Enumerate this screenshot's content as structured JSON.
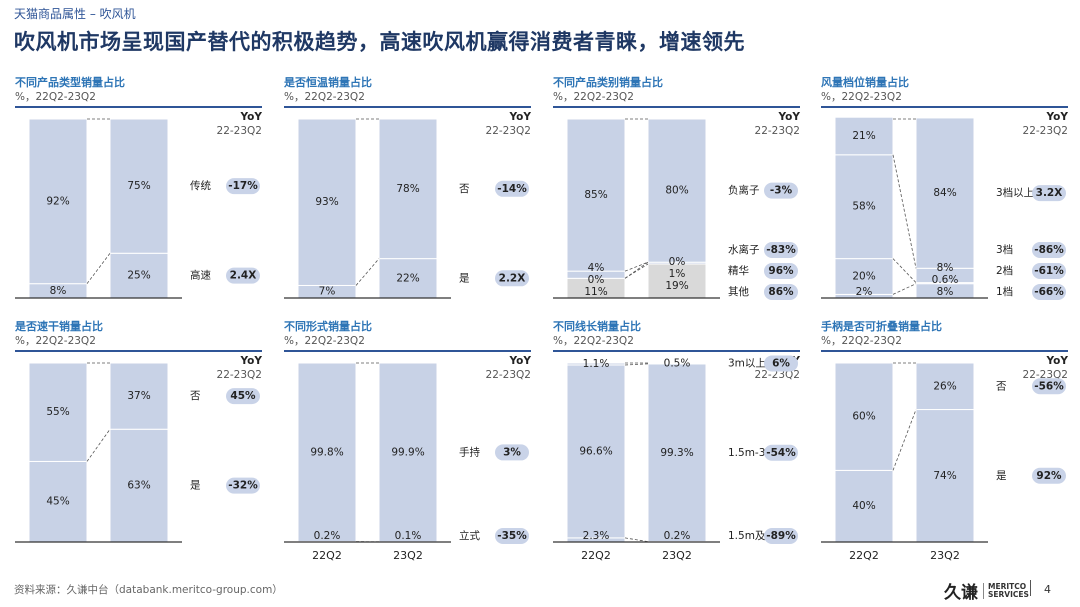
{
  "breadcrumb": "天猫商品属性 – 吹风机",
  "page_title": "吹风机市场呈现国产替代的积极趋势，高速吹风机赢得消费者青睐，增速领先",
  "yoy_header": "YoY",
  "yoy_period": "22-23Q2",
  "footer_source": "资料来源：久谦中台（databank.meritco-group.com）",
  "logo": {
    "cn": "久谦",
    "en1": "MERITCO",
    "en2": "SERVICES"
  },
  "page_number": "4",
  "colors": {
    "bar": "#c8d2e6",
    "bar_alt": "#d9d9d9",
    "badge": "#c9d3e8",
    "rule": "#2f5597",
    "title": "#1f3864",
    "panel_title": "#2e75b6"
  },
  "chart_data": [
    {
      "type": "bar",
      "stacked": true,
      "title": "不同产品类型销量占比",
      "subtitle": "%，22Q2-23Q2",
      "categories": [
        "22Q2",
        "23Q2"
      ],
      "show_categories": false,
      "series": [
        {
          "name": "高速",
          "values": [
            8,
            25
          ],
          "labels": [
            "8%",
            "25%"
          ],
          "yoy": "2.4X"
        },
        {
          "name": "传统",
          "values": [
            92,
            75
          ],
          "labels": [
            "92%",
            "75%"
          ],
          "yoy": "-17%"
        }
      ]
    },
    {
      "type": "bar",
      "stacked": true,
      "title": "是否恒温销量占比",
      "subtitle": "%，22Q2-23Q2",
      "categories": [
        "22Q2",
        "23Q2"
      ],
      "show_categories": false,
      "series": [
        {
          "name": "是",
          "values": [
            7,
            22
          ],
          "labels": [
            "7%",
            "22%"
          ],
          "yoy": "2.2X"
        },
        {
          "name": "否",
          "values": [
            93,
            78
          ],
          "labels": [
            "93%",
            "78%"
          ],
          "yoy": "-14%"
        }
      ]
    },
    {
      "type": "bar",
      "stacked": true,
      "title": "不同产品类别销量占比",
      "subtitle": "%，22Q2-23Q2",
      "categories": [
        "22Q2",
        "23Q2"
      ],
      "show_categories": false,
      "series": [
        {
          "name": "其他",
          "values": [
            11,
            19
          ],
          "labels": [
            "11%",
            "19%"
          ],
          "yoy": "86%",
          "color": "#d9d9d9"
        },
        {
          "name": "精华",
          "values": [
            0,
            1
          ],
          "labels": [
            "0%",
            "1%"
          ],
          "yoy": "96%"
        },
        {
          "name": "水离子",
          "values": [
            4,
            0
          ],
          "labels": [
            "4%",
            "0%"
          ],
          "yoy": "-83%"
        },
        {
          "name": "负离子",
          "values": [
            85,
            80
          ],
          "labels": [
            "85%",
            "80%"
          ],
          "yoy": "-3%"
        }
      ]
    },
    {
      "type": "bar",
      "stacked": true,
      "title": "风量档位销量占比",
      "subtitle": "%，22Q2-23Q2",
      "categories": [
        "22Q2",
        "23Q2"
      ],
      "show_categories": false,
      "series": [
        {
          "name": "1档",
          "values": [
            2,
            8
          ],
          "labels": [
            "2%",
            "8%"
          ],
          "yoy": "-66%"
        },
        {
          "name": "2档",
          "values": [
            20,
            0.6
          ],
          "labels": [
            "20%",
            "0.6%"
          ],
          "yoy": "-61%"
        },
        {
          "name": "3档",
          "values": [
            58,
            8
          ],
          "labels": [
            "58%",
            "8%"
          ],
          "yoy": "-86%"
        },
        {
          "name": "3档以上",
          "values": [
            21,
            84
          ],
          "labels": [
            "21%",
            "84%"
          ],
          "yoy": "3.2X"
        }
      ]
    },
    {
      "type": "bar",
      "stacked": true,
      "title": "是否速干销量占比",
      "subtitle": "%，22Q2-23Q2",
      "categories": [
        "22Q2",
        "23Q2"
      ],
      "show_categories": false,
      "series": [
        {
          "name": "是",
          "values": [
            45,
            63
          ],
          "labels": [
            "45%",
            "63%"
          ],
          "yoy": "-32%"
        },
        {
          "name": "否",
          "values": [
            55,
            37
          ],
          "labels": [
            "55%",
            "37%"
          ],
          "yoy": "45%"
        }
      ]
    },
    {
      "type": "bar",
      "stacked": true,
      "title": "不同形式销量占比",
      "subtitle": "%，22Q2-23Q2",
      "categories": [
        "22Q2",
        "23Q2"
      ],
      "show_categories": true,
      "series": [
        {
          "name": "立式",
          "values": [
            0.2,
            0.1
          ],
          "labels": [
            "0.2%",
            "0.1%"
          ],
          "yoy": "-35%"
        },
        {
          "name": "手持",
          "values": [
            99.8,
            99.9
          ],
          "labels": [
            "99.8%",
            "99.9%"
          ],
          "yoy": "3%"
        }
      ]
    },
    {
      "type": "bar",
      "stacked": true,
      "title": "不同线长销量占比",
      "subtitle": "%，22Q2-23Q2",
      "categories": [
        "22Q2",
        "23Q2"
      ],
      "show_categories": true,
      "series": [
        {
          "name": "1.5m及以下",
          "values": [
            2.3,
            0.2
          ],
          "labels": [
            "2.3%",
            "0.2%"
          ],
          "yoy": "-89%"
        },
        {
          "name": "1.5m-3m",
          "values": [
            96.6,
            99.3
          ],
          "labels": [
            "96.6%",
            "99.3%"
          ],
          "yoy": "-54%"
        },
        {
          "name": "3m以上",
          "values": [
            1.1,
            0.5
          ],
          "labels": [
            "1.1%",
            "0.5%"
          ],
          "yoy": "6%"
        }
      ]
    },
    {
      "type": "bar",
      "stacked": true,
      "title": "手柄是否可折叠销量占比",
      "subtitle": "%，22Q2-23Q2",
      "categories": [
        "22Q2",
        "23Q2"
      ],
      "show_categories": true,
      "series": [
        {
          "name": "是",
          "values": [
            40,
            74
          ],
          "labels": [
            "40%",
            "74%"
          ],
          "yoy": "92%"
        },
        {
          "name": "否",
          "values": [
            60,
            26
          ],
          "labels": [
            "60%",
            "26%"
          ],
          "yoy": "-56%"
        }
      ]
    }
  ]
}
